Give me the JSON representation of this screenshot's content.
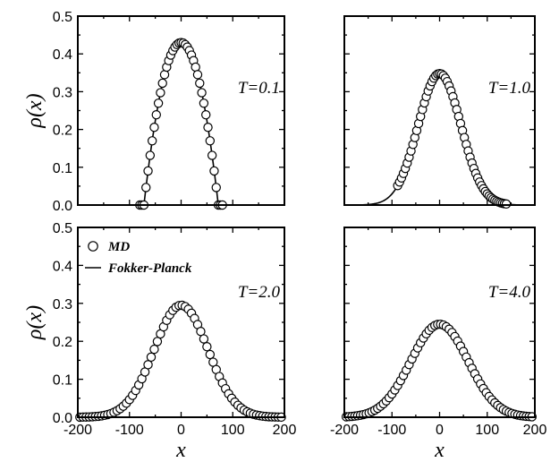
{
  "chart_data": [
    {
      "type": "scatter",
      "panel": "top-left",
      "annotation": "T=0.1",
      "ylabel": "ρ(x)",
      "xlabel": "",
      "xlim": [
        -200,
        200
      ],
      "ylim": [
        0,
        0.5
      ],
      "xticks": [],
      "yticks": [
        "0.0",
        "0.1",
        "0.2",
        "0.3",
        "0.4",
        "0.5"
      ],
      "md_points": {
        "x_from": -80,
        "x_to": 80,
        "step": 4,
        "center": 0,
        "peak": 0.43,
        "shape": "parabolic",
        "halfwidth": 72
      },
      "fokker_planck": {
        "center": 0,
        "peak": 0.43,
        "shape": "parabolic",
        "halfwidth": 72
      },
      "legend": []
    },
    {
      "type": "scatter",
      "panel": "top-right",
      "annotation": "T=1.0",
      "ylabel": "",
      "xlabel": "",
      "xlim": [
        -200,
        200
      ],
      "ylim": [
        0,
        0.5
      ],
      "xticks": [],
      "yticks": [],
      "md_points": {
        "x_from": -88,
        "x_to": 140,
        "step": 4,
        "center": 0,
        "peak": 0.348,
        "shape": "gaussian",
        "sigma": 45
      },
      "fokker_planck": {
        "center": 0,
        "peak": 0.348,
        "shape": "gaussian",
        "sigma": 45
      },
      "legend": []
    },
    {
      "type": "scatter",
      "panel": "bottom-left",
      "annotation": "T=2.0",
      "ylabel": "ρ(x)",
      "xlabel": "x",
      "xlim": [
        -200,
        200
      ],
      "ylim": [
        0,
        0.5
      ],
      "xticks": [
        "-200",
        "-100",
        "0",
        "100",
        "200"
      ],
      "yticks": [
        "0.0",
        "0.1",
        "0.2",
        "0.3",
        "0.4",
        "0.5"
      ],
      "md_points": {
        "x_from": -196,
        "x_to": 196,
        "step": 6,
        "center": 0,
        "peak": 0.295,
        "shape": "gaussian",
        "sigma": 52
      },
      "fokker_planck": {
        "center": 0,
        "peak": 0.295,
        "shape": "gaussian",
        "sigma": 52
      },
      "legend": [
        {
          "marker": "circle",
          "label": "MD"
        },
        {
          "marker": "line",
          "label": "Fokker-Planck"
        }
      ]
    },
    {
      "type": "scatter",
      "panel": "bottom-right",
      "annotation": "T=4.0",
      "ylabel": "",
      "xlabel": "x",
      "xlim": [
        -200,
        200
      ],
      "ylim": [
        0,
        0.5
      ],
      "xticks": [
        "-200",
        "-100",
        "0",
        "100",
        "200"
      ],
      "yticks": [],
      "md_points": {
        "x_from": -196,
        "x_to": 196,
        "step": 6,
        "center": 0,
        "peak": 0.245,
        "shape": "gaussian",
        "sigma": 60
      },
      "fokker_planck": {
        "center": 0,
        "peak": 0.245,
        "shape": "gaussian",
        "sigma": 60
      },
      "legend": []
    }
  ]
}
